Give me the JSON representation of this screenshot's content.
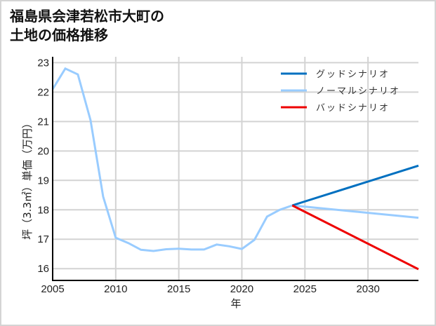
{
  "title_line1": "福島県会津若松市大町の",
  "title_line2": "土地の価格推移",
  "chart_data": {
    "type": "line",
    "title": "福島県会津若松市大町の土地の価格推移",
    "xlabel": "年",
    "ylabel": "坪（3.3㎡）単価（万円）",
    "xlim": [
      2005,
      2034
    ],
    "ylim": [
      15.6,
      23.2
    ],
    "xticks": [
      2005,
      2010,
      2015,
      2020,
      2025,
      2030
    ],
    "yticks": [
      16,
      17,
      18,
      19,
      20,
      21,
      22,
      23
    ],
    "grid": true,
    "legend_position": "upper right",
    "series": [
      {
        "name": "ノーマルシナリオ",
        "color": "#99ccff",
        "x": [
          2005,
          2006,
          2007,
          2008,
          2009,
          2010,
          2011,
          2012,
          2013,
          2014,
          2015,
          2016,
          2017,
          2018,
          2019,
          2020,
          2021,
          2022,
          2023,
          2024
        ],
        "values": [
          22.1,
          22.8,
          22.6,
          21.05,
          18.45,
          17.05,
          16.87,
          16.64,
          16.6,
          16.66,
          16.68,
          16.65,
          16.65,
          16.82,
          16.76,
          16.67,
          16.98,
          17.77,
          18.0,
          18.15
        ]
      },
      {
        "name": "グッドシナリオ",
        "color": "#0070c0",
        "x": [
          2024,
          2034
        ],
        "values": [
          18.15,
          19.5
        ]
      },
      {
        "name": "ノーマルシナリオ",
        "color": "#99ccff",
        "x": [
          2024,
          2034
        ],
        "values": [
          18.15,
          17.73
        ]
      },
      {
        "name": "バッドシナリオ",
        "color": "#ee0000",
        "x": [
          2024,
          2034
        ],
        "values": [
          18.15,
          15.98
        ]
      }
    ]
  },
  "legend": [
    {
      "label": "グッドシナリオ",
      "color": "#0070c0"
    },
    {
      "label": "ノーマルシナリオ",
      "color": "#99ccff"
    },
    {
      "label": "バッドシナリオ",
      "color": "#ee0000"
    }
  ]
}
